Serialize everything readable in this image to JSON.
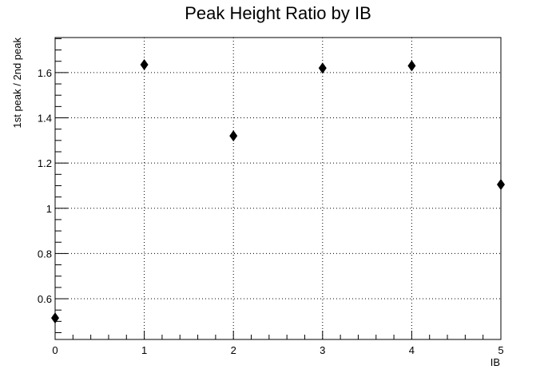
{
  "chart_data": {
    "type": "scatter",
    "title": "Peak Height Ratio by IB",
    "xlabel": "IB",
    "ylabel": "1st peak / 2nd peak",
    "x": [
      0,
      1,
      2,
      3,
      4,
      5
    ],
    "y": [
      0.515,
      1.635,
      1.32,
      1.62,
      1.63,
      1.105
    ],
    "xlim": [
      0,
      5
    ],
    "ylim": [
      0.42,
      1.755
    ],
    "x_ticks": [
      "0",
      "1",
      "2",
      "3",
      "4",
      "5"
    ],
    "y_ticks": [
      "0.6",
      "0.8",
      "1",
      "1.2",
      "1.4",
      "1.6"
    ],
    "grid": true,
    "marker": "diamond",
    "marker_color": "#000000"
  }
}
